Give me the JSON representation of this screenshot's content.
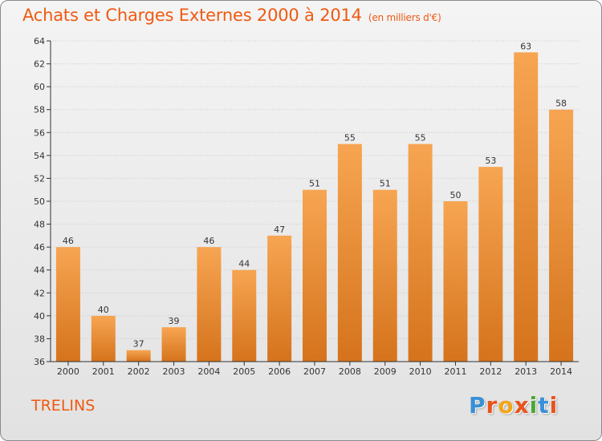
{
  "header": {
    "title": "Achats et Charges Externes 2000 à 2014",
    "unit": "(en milliers d'€)"
  },
  "footer": {
    "commune": "TRELINS",
    "logo_letters": [
      "P",
      "r",
      "o",
      "x",
      "i",
      "t",
      "i"
    ],
    "logo_colors": [
      "#3a8fd6",
      "#e8541d",
      "#f2a51a",
      "#e8541d",
      "#4aa832",
      "#3a8fd6",
      "#e8541d"
    ]
  },
  "colors": {
    "accent": "#ef5a12",
    "bar_top": "#f7a552",
    "bar_bottom": "#d5731c",
    "grid": "#c9c9c9",
    "axis": "#333333"
  },
  "chart_data": {
    "type": "bar",
    "title": "Achats et Charges Externes 2000 à 2014",
    "subtitle": "(en milliers d'€)",
    "categories": [
      "2000",
      "2001",
      "2002",
      "2003",
      "2004",
      "2005",
      "2006",
      "2007",
      "2008",
      "2009",
      "2010",
      "2011",
      "2012",
      "2013",
      "2014"
    ],
    "values": [
      46,
      40,
      37,
      39,
      46,
      44,
      47,
      51,
      55,
      51,
      55,
      50,
      53,
      63,
      58
    ],
    "ylim": [
      36,
      64
    ],
    "yticks": [
      36,
      38,
      40,
      42,
      44,
      46,
      48,
      50,
      52,
      54,
      56,
      58,
      60,
      62,
      64
    ],
    "grid": true,
    "data_labels": true
  }
}
